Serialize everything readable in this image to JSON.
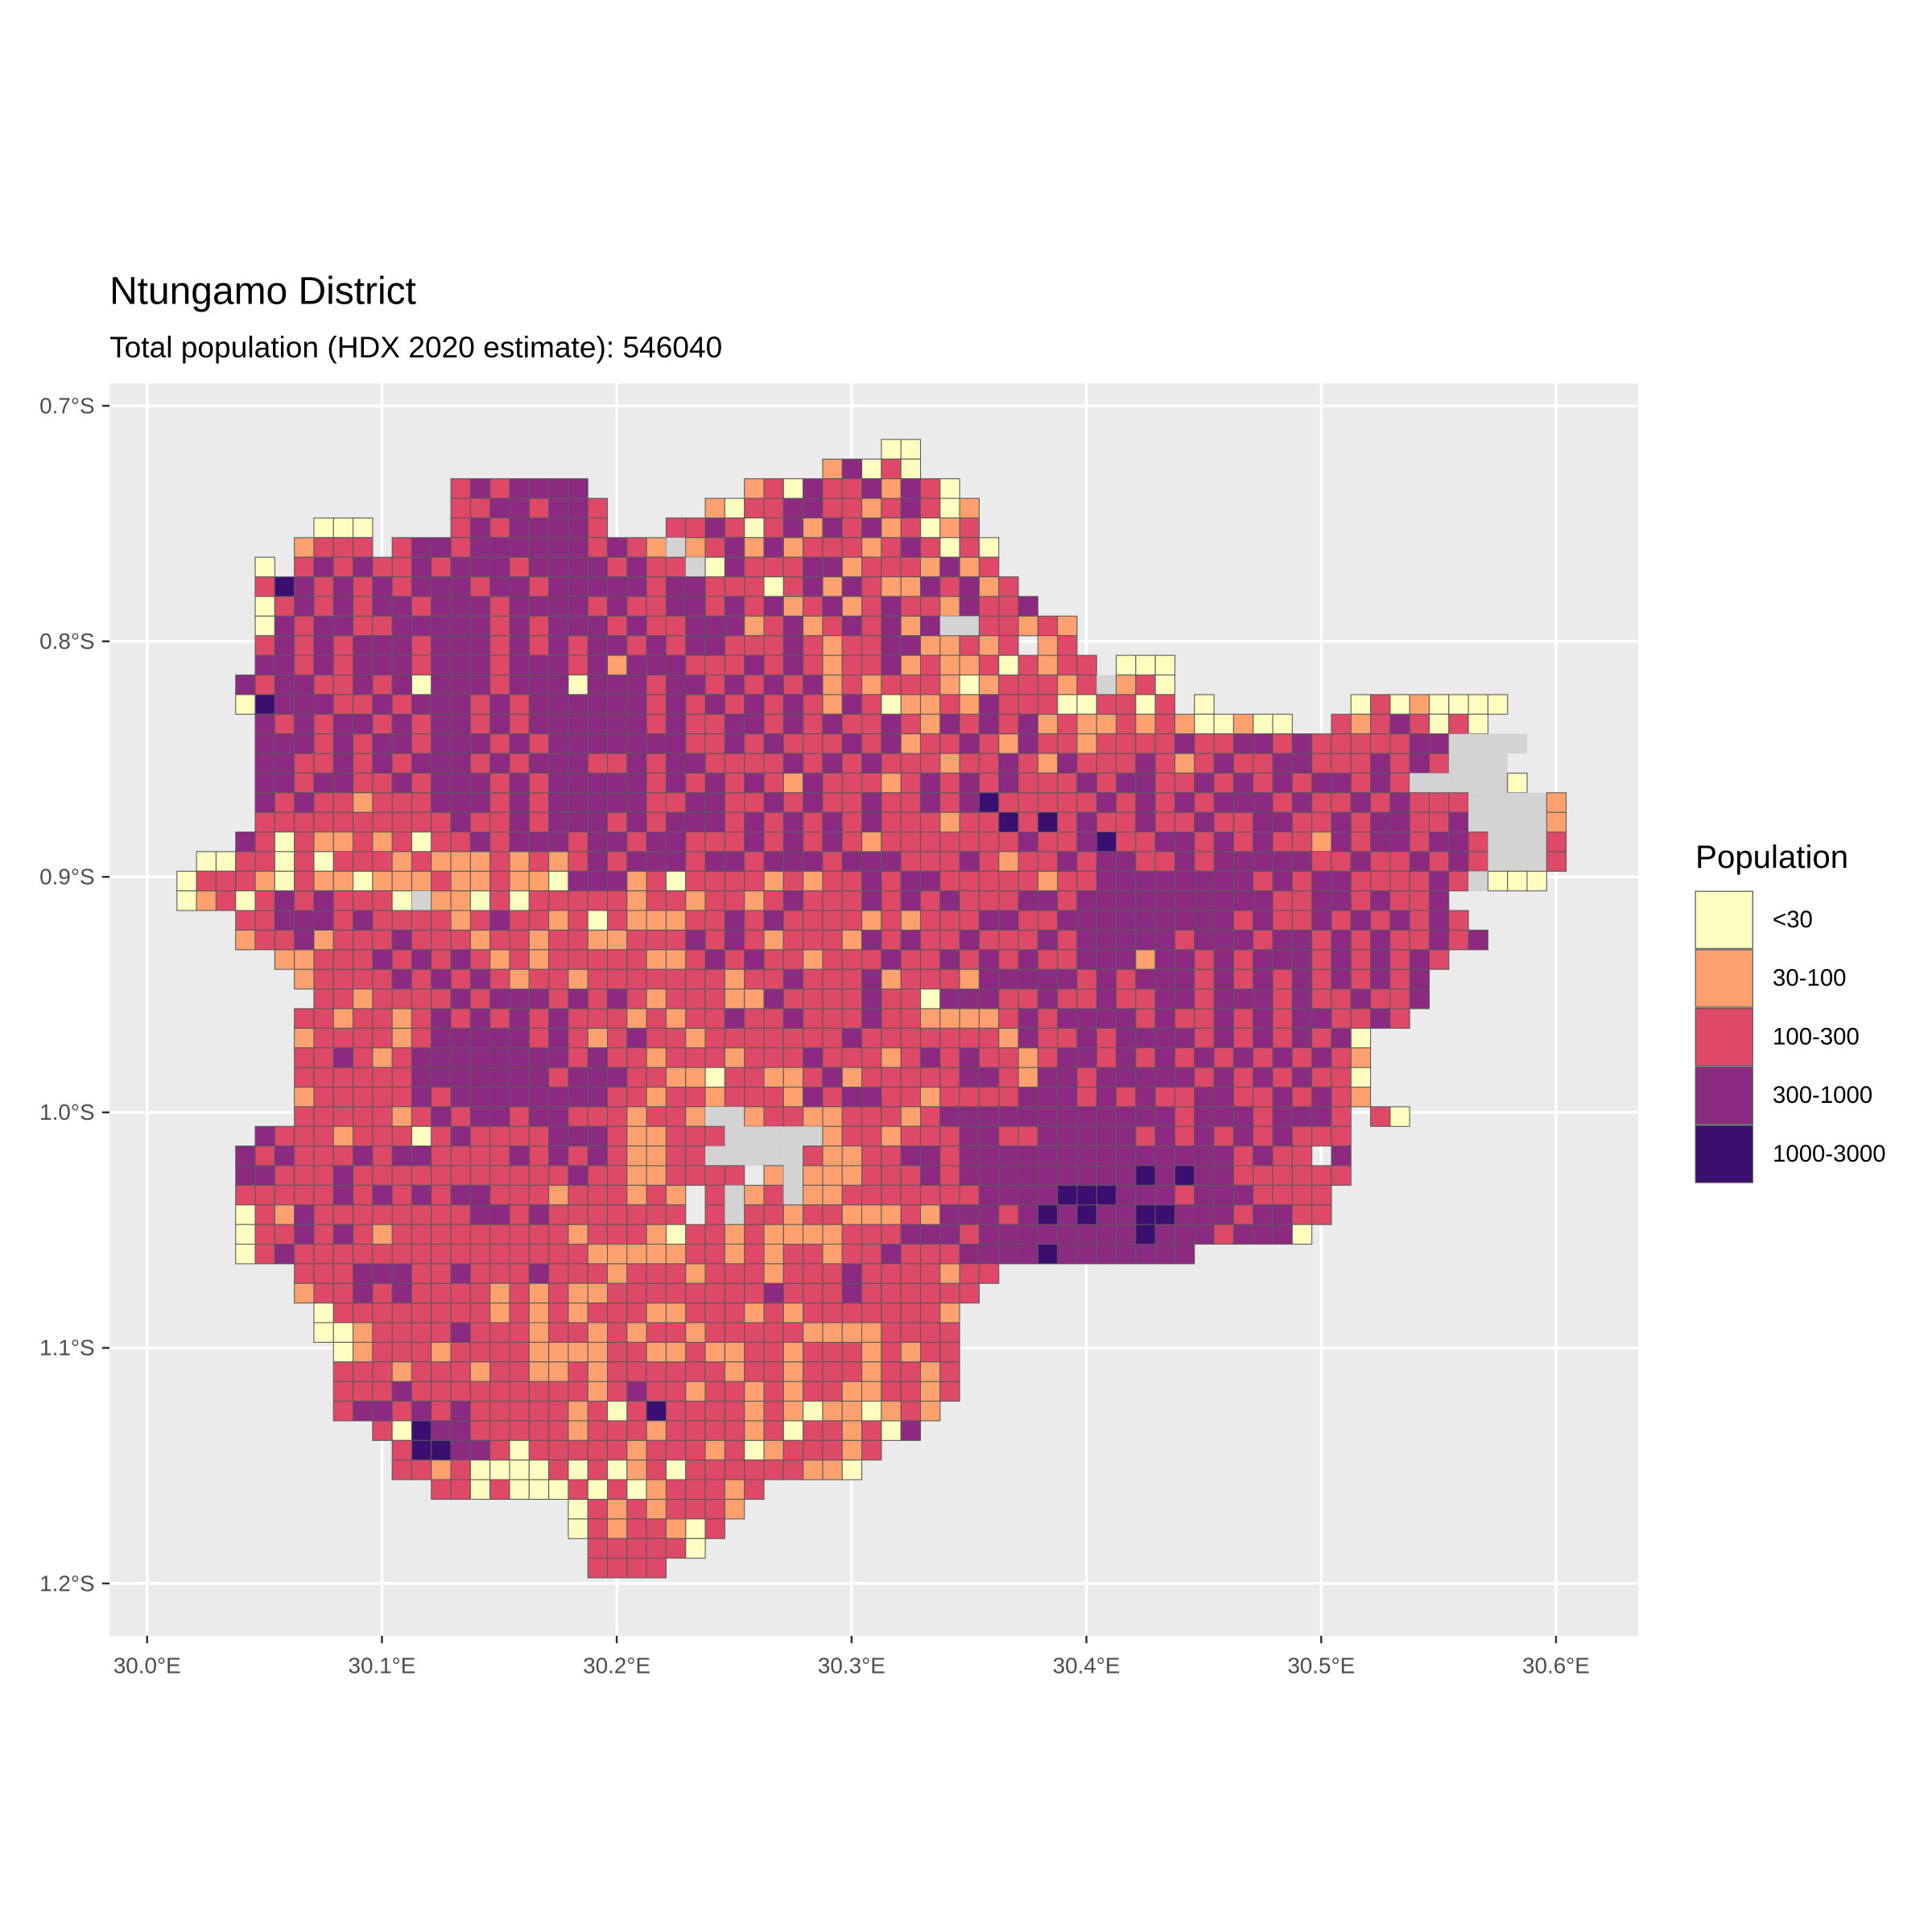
{
  "map": {
    "title": "Ntungamo District",
    "subtitle": "Total population (HDX 2020 estimate): 546040",
    "xlim": [
      29.984,
      30.635
    ],
    "ylim": [
      0.6905,
      1.2222
    ],
    "xticks": [
      {
        "value": 30.0,
        "label": "30.0°E"
      },
      {
        "value": 30.1,
        "label": "30.1°E"
      },
      {
        "value": 30.2,
        "label": "30.2°E"
      },
      {
        "value": 30.3,
        "label": "30.3°E"
      },
      {
        "value": 30.4,
        "label": "30.4°E"
      },
      {
        "value": 30.5,
        "label": "30.5°E"
      },
      {
        "value": 30.6,
        "label": "30.6°E"
      }
    ],
    "yticks": [
      {
        "value": 0.7,
        "label": "0.7°S"
      },
      {
        "value": 0.8,
        "label": "0.8°S"
      },
      {
        "value": 0.9,
        "label": "0.9°S"
      },
      {
        "value": 1.0,
        "label": "1.0°S"
      },
      {
        "value": 1.1,
        "label": "1.1°S"
      },
      {
        "value": 1.2,
        "label": "1.2°S"
      }
    ],
    "grid": true,
    "legend": {
      "title": "Population",
      "classes": [
        {
          "label": "<30",
          "color": "#fcfdbf"
        },
        {
          "label": "30-100",
          "color": "#fea16e"
        },
        {
          "label": "100-300",
          "color": "#de4968"
        },
        {
          "label": "300-1000",
          "color": "#8c2981"
        },
        {
          "label": "1000-3000",
          "color": "#3b0f70"
        }
      ]
    },
    "no_data_color": "#d3d3d3",
    "cells": {
      "origin": [
        30.0127,
        0.7143
      ],
      "size": 0.008333,
      "rows": [
        [
          36,
          "00"
        ],
        [
          33,
          "13020"
        ],
        [
          14,
          "2323333        12032231320"
        ],
        [
          14,
          "22332332     10223322123201"
        ],
        [
          7,
          "000    23233332   2232023132312012"
        ],
        [
          6,
          "1222 23323333332321.1231312221232020"
        ],
        [
          4,
          "0 23232232333233332322.032223312221312"
        ],
        [
          4,
          "243232323332332333332332220231321132312"
        ],
        [
          4,
          "0232323323332333323223323231231232213223"
        ],
        [
          4,
          "03233223333323233323223331231232313..22121"
        ],
        [
          4,
          "232323332333232323323233222321223311212 12"
        ],
        [
          4,
          "3323233323332333231333222323212231211202122 000"
        ],
        [
          3,
          "32332232303332333033323323232312122210122212.120"
        ],
        [
          3,
          "043332232333232333333232323232132011213222002202 0       02010000"
        ],
        [
          4,
          "32323323233232333333232233232322321323231211212100100  21232020"
        ],
        [
          4,
          "3332323323332323333333223232223231223213221222232233232222233...."
        ],
        [
          4,
          "3322323233323233322323322223232322212232132223212322332223232..."
        ],
        [
          4,
          "33233223233323233333232323213222123232322232332232323233232.....0"
        ],
        [
          4,
          "32322122233323233333223322323223223234222223232323332322323222....1"
        ],
        [
          4,
          "22222222223223233323233323232323222122424232232232233223233223....1"
        ],
        [
          3,
          "3202112120223233323323322232323212222222322342233232322132332332...2"
        ],
        [
          1,
          "002202022212111212123233323323332333222321223233223233333223223232...2"
        ],
        [
          0,
          "022210211011121121103331202222121223233222221223333333323233222232.000"
        ],
        [
          0,
          "012023232220.1102022222122122123222323232223323333333333223323223"
        ],
        [
          3,
          "223332322221232212021112232322221212223322333333333232232323232"
        ],
        [
          3,
          "1223122232221221221122232321222132322322232333332333233232322323"
        ],
        [
          5,
          "112223232321212222211232322122232232323223331332323332323232"
        ],
        [
          6,
          "1222232323212212222222122322231222133333232333232323232323"
        ],
        [
          7,
          "221222232333232321222113222232203332232232233233323223223"
        ],
        [
          6,
          "221221232323232221212232232223221111232333323223232332232"
        ],
        [
          6,
          "1222212333332321232212222222322222221322323333232323230"
        ],
        [
          6,
          "2232123333333323221222122232221232322123323232323232321"
        ],
        [
          6,
          "2222223333333233322110221123122222332133233333232323220"
        ],
        [
          6,
          "1222223233333333221221222132332212222333232322332232321"
        ],
        [
          6,
          "222221232332332221221..1221122212333333333333233323332 20"
        ],
        [
          4,
          "322212220232222333211222.....122122233223333323232323222"
        ],
        [
          3,
          "323222323322223232321122.....21122332333333333333332322 3"
        ],
        [
          3,
          "33222322222222222322112222 1.1112223233333333343433222222"
        ],
        [
          3,
          "22222323232332221222121 2.12.112222222333344433323332222"
        ],
        [
          3,
          "02132222222233232222222 2.221221112133323434334433323322"
        ],
        [
          3,
          "0223232122222222212221022121111222333233333333433323330"
        ],
        [
          3,
          "0232222222222222221111122121221223222333343333333"
        ],
        [
          6,
          "222333223222322212221222122232222122"
        ],
        [
          6,
          "12232322221212112222222232223222222"
        ],
        [
          7,
          "022222222121212221122212122222221"
        ],
        [
          7,
          "001222232221221212212222211112222"
        ],
        [
          8,
          "01222122221111221121122122212122"
        ],
        [
          8,
          "22212221221121222222122122212212"
        ],
        [
          8,
          "22232222222221232212212122112212"
        ],
        [
          8,
          "2332323222221202422221210110121"
        ],
        [
          10,
          "2043322222122212222120221203"
        ],
        [
          11,
          "2443320222221222120122212"
        ],
        [
          11,
          "221200002020120222222110"
        ],
        [
          13,
          "22020002020122212"
        ],
        [
          20,
          "021212221"
        ],
        [
          20,
          "02122102"
        ],
        [
          21,
          "222220"
        ],
        [
          21,
          "2222"
        ]
      ]
    }
  }
}
